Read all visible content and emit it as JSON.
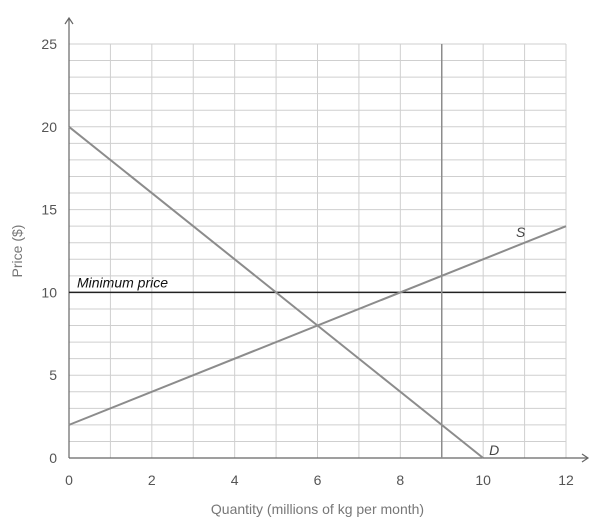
{
  "chart_data": {
    "type": "line",
    "xlabel": "Quantity (millions of kg per month)",
    "ylabel": "Price ($)",
    "xlim": [
      0,
      12
    ],
    "ylim": [
      0,
      25
    ],
    "x_ticks": [
      0,
      2,
      4,
      6,
      8,
      10,
      12
    ],
    "y_ticks": [
      0,
      5,
      10,
      15,
      20,
      25
    ],
    "grid": true,
    "grid_step_x": 1,
    "grid_step_y": 1,
    "series": [
      {
        "name": "S",
        "x": [
          0,
          12
        ],
        "y": [
          2,
          14
        ],
        "color": "#8c8c8c"
      },
      {
        "name": "D",
        "x": [
          0,
          10
        ],
        "y": [
          20,
          0
        ],
        "color": "#8c8c8c"
      }
    ],
    "annotations": [
      {
        "type": "hline",
        "y": 10,
        "label": "Minimum price",
        "color": "#222222"
      },
      {
        "type": "vline",
        "x": 9,
        "color": "#8c8c8c"
      }
    ]
  }
}
